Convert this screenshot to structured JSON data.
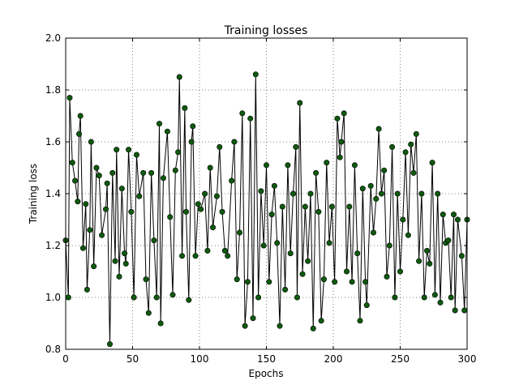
{
  "chart_data": {
    "type": "line",
    "title": "Training losses",
    "x_label": "Epochs",
    "y_label": "Training loss",
    "x": [
      0,
      2,
      3,
      5,
      7,
      9,
      10,
      11,
      13,
      15,
      16,
      18,
      19,
      21,
      23,
      25,
      27,
      30,
      31,
      33,
      35,
      37,
      38,
      40,
      42,
      44,
      45,
      47,
      49,
      51,
      53,
      55,
      58,
      60,
      62,
      64,
      66,
      68,
      70,
      71,
      73,
      76,
      78,
      80,
      82,
      84,
      85,
      87,
      89,
      90,
      92,
      94,
      95,
      97,
      99,
      101,
      104,
      106,
      108,
      110,
      113,
      115,
      117,
      119,
      121,
      124,
      126,
      128,
      130,
      132,
      134,
      136,
      138,
      140,
      142,
      144,
      146,
      148,
      150,
      152,
      154,
      156,
      158,
      160,
      162,
      164,
      166,
      168,
      170,
      172,
      173,
      175,
      177,
      179,
      181,
      183,
      185,
      187,
      189,
      191,
      193,
      195,
      197,
      199,
      201,
      203,
      205,
      206,
      208,
      210,
      212,
      214,
      216,
      218,
      220,
      222,
      224,
      225,
      228,
      230,
      232,
      234,
      236,
      238,
      240,
      242,
      244,
      246,
      248,
      250,
      252,
      254,
      256,
      258,
      260,
      262,
      264,
      266,
      268,
      270,
      272,
      274,
      276,
      278,
      280,
      282,
      284,
      286,
      288,
      290,
      291,
      293,
      296,
      298,
      300
    ],
    "series": [
      {
        "name": "Training loss",
        "color": "#000000",
        "marker_color": "#0d5a0d",
        "values": [
          1.22,
          1.0,
          1.77,
          1.52,
          1.45,
          1.37,
          1.63,
          1.7,
          1.19,
          1.36,
          1.03,
          1.26,
          1.6,
          1.12,
          1.5,
          1.47,
          1.24,
          1.34,
          1.44,
          0.82,
          1.48,
          1.14,
          1.57,
          1.08,
          1.42,
          1.17,
          1.13,
          1.57,
          1.33,
          1.0,
          1.55,
          1.39,
          1.48,
          1.07,
          0.94,
          1.48,
          1.22,
          1.0,
          1.67,
          0.9,
          1.46,
          1.64,
          1.31,
          1.01,
          1.49,
          1.56,
          1.85,
          1.16,
          1.73,
          1.33,
          0.99,
          1.6,
          1.66,
          1.16,
          1.36,
          1.34,
          1.4,
          1.18,
          1.5,
          1.27,
          1.39,
          1.58,
          1.33,
          1.18,
          1.16,
          1.45,
          1.6,
          1.07,
          1.25,
          1.71,
          0.89,
          1.06,
          1.69,
          0.92,
          1.86,
          1.0,
          1.41,
          1.2,
          1.51,
          1.06,
          1.32,
          1.43,
          1.21,
          0.89,
          1.35,
          1.03,
          1.51,
          1.17,
          1.4,
          1.58,
          1.0,
          1.75,
          1.09,
          1.35,
          1.14,
          1.4,
          0.88,
          1.48,
          1.33,
          0.91,
          1.07,
          1.52,
          1.21,
          1.35,
          1.06,
          1.69,
          1.54,
          1.6,
          1.71,
          1.1,
          1.35,
          1.06,
          1.51,
          1.17,
          0.91,
          1.42,
          1.06,
          0.97,
          1.43,
          1.25,
          1.38,
          1.65,
          1.4,
          1.49,
          1.08,
          1.2,
          1.58,
          1.0,
          1.4,
          1.1,
          1.3,
          1.56,
          1.24,
          1.59,
          1.48,
          1.63,
          1.14,
          1.4,
          1.0,
          1.18,
          1.13,
          1.52,
          1.01,
          1.4,
          0.98,
          1.32,
          1.21,
          1.22,
          1.0,
          1.32,
          0.95,
          1.3,
          1.16,
          0.95,
          1.3
        ]
      }
    ],
    "xlim": [
      0,
      300
    ],
    "xticks": [
      0,
      50,
      100,
      150,
      200,
      250,
      300
    ],
    "ylim": [
      0.8,
      2.0
    ],
    "yticks": [
      0.8,
      {
        "value": 1,
        "label": "1.0"
      },
      1.2,
      1.4,
      1.6,
      1.8,
      {
        "value": 2,
        "label": "2.0"
      }
    ],
    "grid": true
  }
}
